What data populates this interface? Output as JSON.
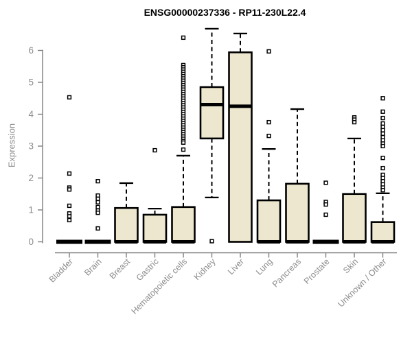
{
  "colors": {
    "box_fill": "#ECE7CE",
    "box_stroke": "#000000",
    "median": "#000000",
    "whisker": "#000000",
    "outlier_fill": "#ffffff",
    "axis_line": "#7e7e7e",
    "axis_text": "#8c8c8c",
    "title_text": "#000000",
    "background": "#ffffff"
  },
  "chart_data": {
    "type": "boxplot",
    "title": "ENSG00000237336 - RP11-230L22.4",
    "ylabel": "Expression",
    "xlabel": "",
    "ylim": [
      0,
      6.8
    ],
    "yticks": [
      0,
      1,
      2,
      3,
      4,
      5,
      6
    ],
    "grid": false,
    "legend": "none",
    "categories": [
      "Bladder",
      "Brain",
      "Breast",
      "Gastric",
      "Hematopoietic cells",
      "Kidney",
      "Liver",
      "Lung",
      "Pancreas",
      "Prostate",
      "Skin",
      "Unknown / Other"
    ],
    "series": [
      {
        "name": "Bladder",
        "q1": 0,
        "median": 0,
        "q3": 0,
        "whisker_low": 0,
        "whisker_high": 0,
        "outliers": [
          4.53,
          2.14,
          1.7,
          1.64,
          1.13,
          0.89,
          0.8,
          0.68
        ]
      },
      {
        "name": "Brain",
        "q1": 0,
        "median": 0,
        "q3": 0,
        "whisker_low": 0,
        "whisker_high": 0,
        "outliers": [
          1.9,
          1.45,
          1.35,
          1.24,
          1.09,
          0.98,
          0.91,
          0.42
        ]
      },
      {
        "name": "Breast",
        "q1": 0,
        "median": 0,
        "q3": 1.06,
        "whisker_low": 0,
        "whisker_high": 1.84,
        "outliers": []
      },
      {
        "name": "Gastric",
        "q1": 0,
        "median": 0,
        "q3": 0.85,
        "whisker_low": 0,
        "whisker_high": 1.04,
        "outliers": [
          2.87
        ]
      },
      {
        "name": "Hematopoietic cells",
        "q1": 0,
        "median": 0,
        "q3": 1.09,
        "whisker_low": 0,
        "whisker_high": 2.7,
        "outliers": [
          6.4,
          5.54,
          5.47,
          5.4,
          5.33,
          5.26,
          5.19,
          5.12,
          5.05,
          4.98,
          4.91,
          4.84,
          4.77,
          4.7,
          4.63,
          4.56,
          4.49,
          4.42,
          4.35,
          4.28,
          4.21,
          4.14,
          4.07,
          4.0,
          3.93,
          3.86,
          3.79,
          3.72,
          3.65,
          3.58,
          3.51,
          3.44,
          3.37,
          3.3,
          3.23,
          3.16,
          3.11,
          2.89
        ]
      },
      {
        "name": "Kidney",
        "q1": 3.24,
        "median": 4.3,
        "q3": 4.85,
        "whisker_low": 1.39,
        "whisker_high": 6.68,
        "outliers": [
          0.02
        ]
      },
      {
        "name": "Liver",
        "q1": 0,
        "median": 4.25,
        "q3": 5.94,
        "whisker_low": 0,
        "whisker_high": 6.53,
        "outliers": []
      },
      {
        "name": "Lung",
        "q1": 0,
        "median": 0,
        "q3": 1.3,
        "whisker_low": 0,
        "whisker_high": 2.91,
        "outliers": [
          5.97,
          3.75,
          3.32
        ]
      },
      {
        "name": "Pancreas",
        "q1": 0,
        "median": 0,
        "q3": 1.82,
        "whisker_low": 0,
        "whisker_high": 4.16,
        "outliers": []
      },
      {
        "name": "Prostate",
        "q1": 0,
        "median": 0,
        "q3": 0,
        "whisker_low": 0,
        "whisker_high": 0,
        "outliers": [
          1.85,
          1.25,
          1.17,
          0.85
        ]
      },
      {
        "name": "Skin",
        "q1": 0,
        "median": 0,
        "q3": 1.5,
        "whisker_low": 0,
        "whisker_high": 3.24,
        "outliers": [
          3.9,
          3.83,
          3.75
        ]
      },
      {
        "name": "Unknown / Other",
        "q1": 0,
        "median": 0,
        "q3": 0.62,
        "whisker_low": 0,
        "whisker_high": 1.52,
        "outliers": [
          4.5,
          4.08,
          3.88,
          3.71,
          3.6,
          3.5,
          3.39,
          3.28,
          3.18,
          3.08,
          3.0,
          2.63,
          2.31,
          2.1,
          2.0,
          1.9,
          1.8,
          1.7,
          1.62
        ]
      }
    ]
  }
}
